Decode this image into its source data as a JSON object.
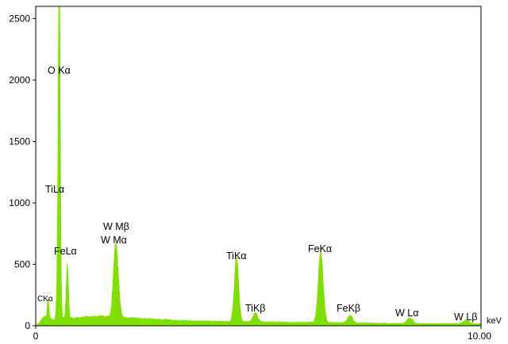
{
  "chart_data": {
    "type": "area",
    "title": "",
    "xlabel": "",
    "ylabel": "",
    "x_unit": "keV",
    "xlim": [
      0,
      10
    ],
    "ylim": [
      0,
      2600
    ],
    "x_tick_labels": [
      {
        "value": 0,
        "label": "0"
      },
      {
        "value": 10,
        "label": "10.00"
      }
    ],
    "y_ticks": [
      0,
      500,
      1000,
      1500,
      2000,
      2500
    ],
    "grid": false,
    "legend": "none",
    "colors": {
      "spectrum": "#7fe000",
      "axes": "#000000",
      "text": "#000000"
    },
    "background_level": [
      [
        0.0,
        0
      ],
      [
        0.08,
        20
      ],
      [
        0.15,
        60
      ],
      [
        0.2,
        75
      ],
      [
        0.3,
        60
      ],
      [
        0.4,
        45
      ],
      [
        0.5,
        55
      ],
      [
        0.8,
        60
      ],
      [
        1.2,
        70
      ],
      [
        1.5,
        75
      ],
      [
        2.0,
        65
      ],
      [
        2.5,
        55
      ],
      [
        3.0,
        45
      ],
      [
        3.5,
        38
      ],
      [
        4.0,
        35
      ],
      [
        4.5,
        32
      ],
      [
        5.0,
        30
      ],
      [
        5.5,
        28
      ],
      [
        6.0,
        26
      ],
      [
        7.0,
        22
      ],
      [
        8.0,
        18
      ],
      [
        9.0,
        16
      ],
      [
        10.0,
        15
      ]
    ],
    "peaks": [
      {
        "label": "CKα",
        "energy": 0.28,
        "counts": 150,
        "width": 0.02
      },
      {
        "label": "O Kα",
        "energy": 0.53,
        "counts": 2050,
        "width": 0.02
      },
      {
        "label": "TiLα",
        "energy": 0.52,
        "counts": 1050,
        "width": 0.03
      },
      {
        "label": "FeLα",
        "energy": 0.71,
        "counts": 430,
        "width": 0.025
      },
      {
        "label": "W Mα",
        "energy": 1.78,
        "counts": 460,
        "width": 0.045
      },
      {
        "label": "W Mβ",
        "energy": 1.84,
        "counts": 260,
        "width": 0.045
      },
      {
        "label": "TiKα",
        "energy": 4.51,
        "counts": 525,
        "width": 0.048
      },
      {
        "label": "TiKβ",
        "energy": 4.93,
        "counts": 75,
        "width": 0.05
      },
      {
        "label": "FeKα",
        "energy": 6.4,
        "counts": 570,
        "width": 0.055
      },
      {
        "label": "FeKβ",
        "energy": 7.06,
        "counts": 60,
        "width": 0.055
      },
      {
        "label": "W Lα",
        "energy": 8.4,
        "counts": 45,
        "width": 0.06
      },
      {
        "label": "W Lβ",
        "energy": 9.67,
        "counts": 28,
        "width": 0.06
      }
    ],
    "annotations": [
      "O Kα",
      "TiLα",
      "W Mβ",
      "W Mα",
      "FeLα",
      "CKα",
      "TiKα",
      "TiKβ",
      "FeKα",
      "FeKβ",
      "W Lα",
      "W Lβ"
    ]
  }
}
